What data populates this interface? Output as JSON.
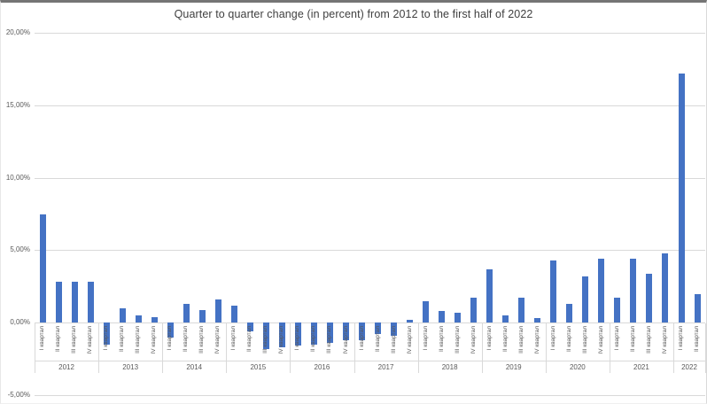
{
  "chart_data": {
    "type": "bar",
    "title": "Quarter to quarter change (in percent) from 2012 to the first half of 2022",
    "xlabel": "",
    "ylabel": "",
    "ylim": [
      -5,
      20
    ],
    "grid": true,
    "legend": false,
    "bar_color": "#4472C4",
    "gridline_color": "#D9D9D9",
    "axis_text_color": "#595959",
    "title_color": "#3F3F3F",
    "y_ticks": [
      {
        "value": 20,
        "label": "20,00%"
      },
      {
        "value": 15,
        "label": "15,00%"
      },
      {
        "value": 10,
        "label": "10,00%"
      },
      {
        "value": 5,
        "label": "5,00%"
      },
      {
        "value": 0,
        "label": "0,00%"
      },
      {
        "value": -5,
        "label": "-5,00%"
      }
    ],
    "quarter_labels": [
      "I квартал",
      "II квартал",
      "III квартал",
      "IV квартал"
    ],
    "groups": [
      {
        "year": "2012",
        "values": [
          7.5,
          2.8,
          2.8,
          2.8
        ]
      },
      {
        "year": "2013",
        "values": [
          -1.5,
          1.0,
          0.5,
          0.4
        ]
      },
      {
        "year": "2014",
        "values": [
          -1.0,
          1.3,
          0.9,
          1.6
        ]
      },
      {
        "year": "2015",
        "values": [
          1.2,
          -0.6,
          -1.8,
          -1.7
        ]
      },
      {
        "year": "2016",
        "values": [
          -1.6,
          -1.5,
          -1.4,
          -1.2
        ]
      },
      {
        "year": "2017",
        "values": [
          -1.2,
          -0.8,
          -0.9,
          0.2
        ]
      },
      {
        "year": "2018",
        "values": [
          1.5,
          0.8,
          0.7,
          1.7
        ]
      },
      {
        "year": "2019",
        "values": [
          3.7,
          0.5,
          1.7,
          0.3
        ]
      },
      {
        "year": "2020",
        "values": [
          4.3,
          1.3,
          3.2,
          4.4
        ]
      },
      {
        "year": "2021",
        "values": [
          1.7,
          4.4,
          3.4,
          4.8
        ]
      },
      {
        "year": "2022",
        "values": [
          17.2,
          2.0
        ]
      }
    ]
  }
}
